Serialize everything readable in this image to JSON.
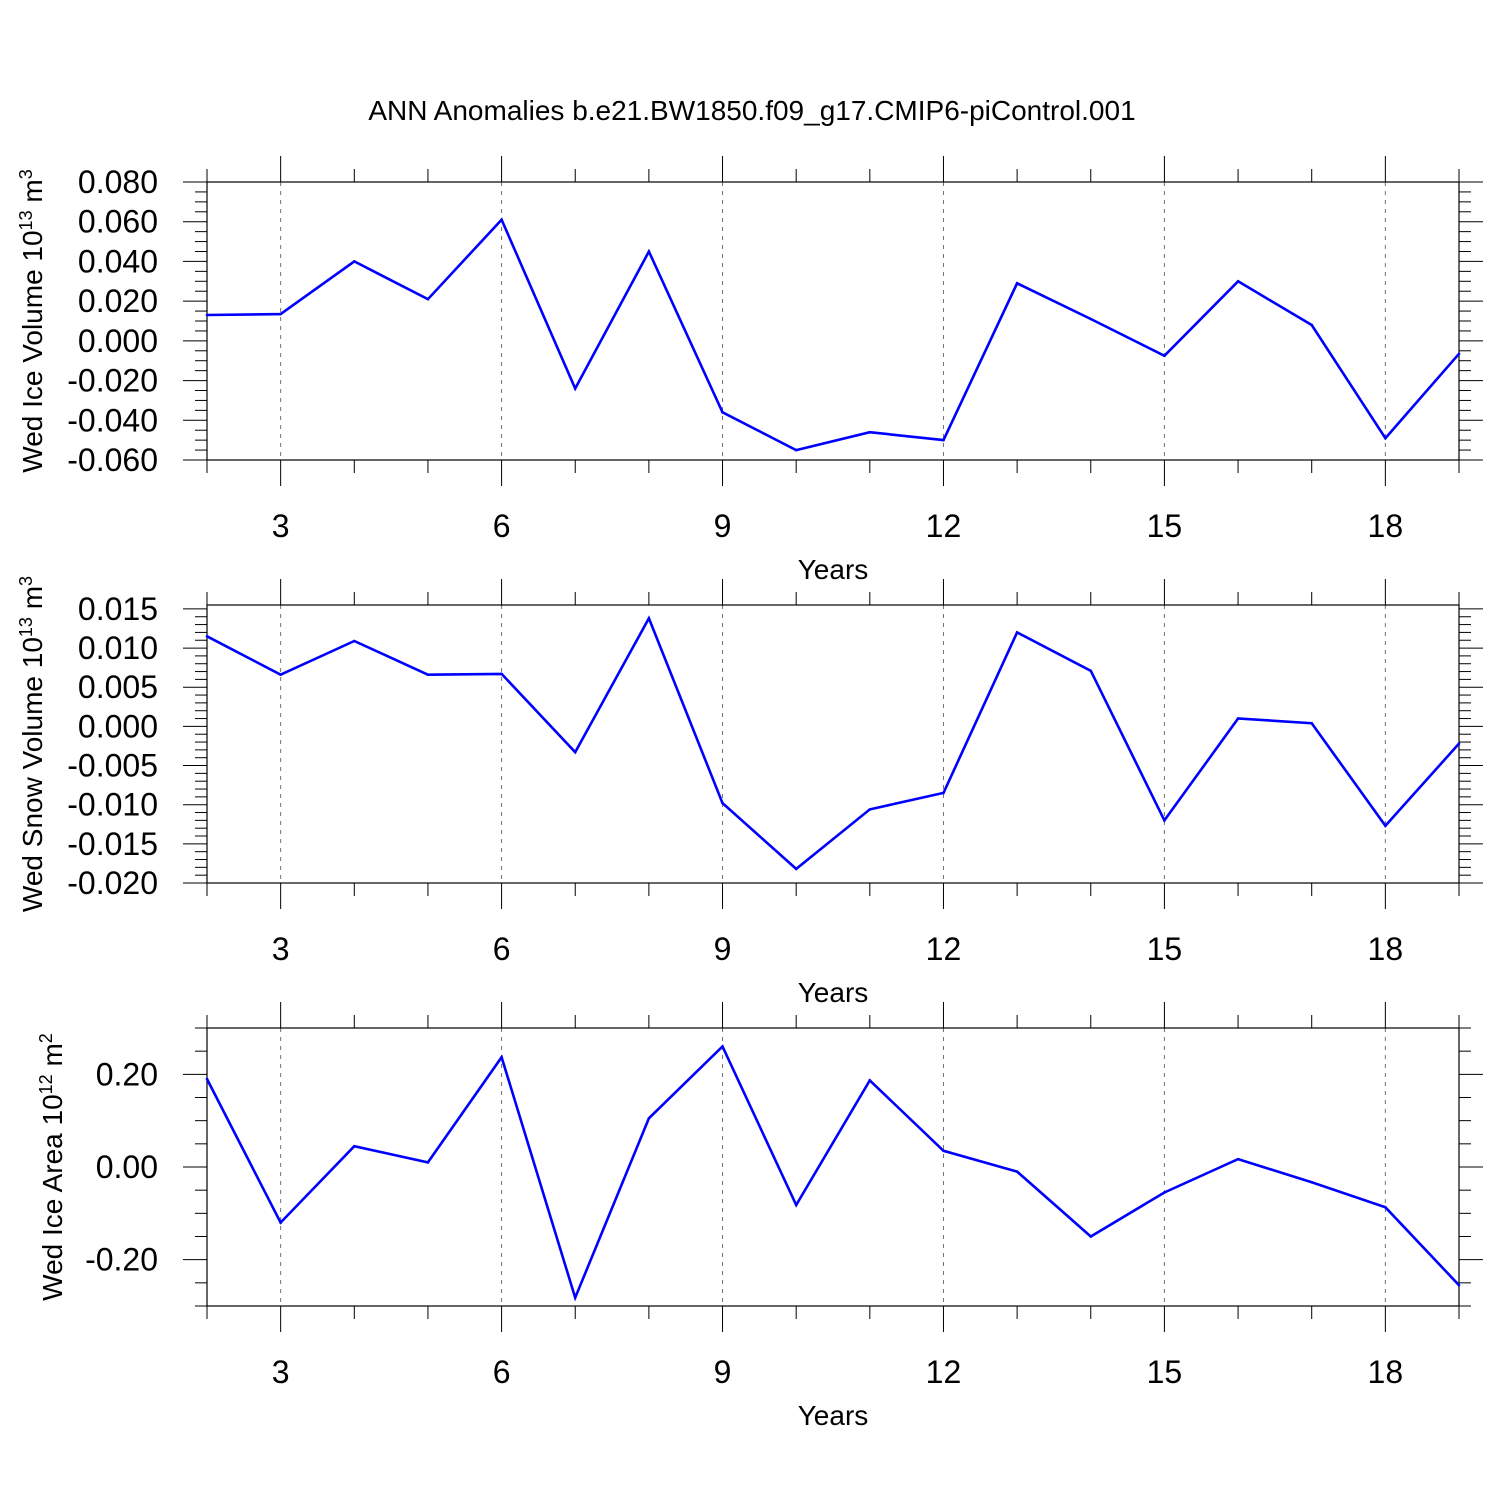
{
  "title": "ANN Anomalies b.e21.BW1850.f09_g17.CMIP6-piControl.001",
  "line_color": "#0000ff",
  "chart_data": [
    {
      "type": "line",
      "ylabel": "Wed Ice Volume 10",
      "ylabel_exp": "13",
      "ylabel_unit": "m",
      "ylabel_unit_exp": "3",
      "xlabel": "Years",
      "xlim": [
        2,
        19
      ],
      "ylim": [
        -0.06,
        0.08
      ],
      "xticks": [
        3,
        6,
        9,
        12,
        15,
        18
      ],
      "xtick_labels": [
        "3",
        "6",
        "9",
        "12",
        "15",
        "18"
      ],
      "yticks": [
        -0.06,
        -0.04,
        -0.02,
        0.0,
        0.02,
        0.04,
        0.06,
        0.08
      ],
      "ytick_labels": [
        "-0.060",
        "-0.040",
        "-0.020",
        "0.000",
        "0.020",
        "0.040",
        "0.060",
        "0.080"
      ],
      "yminor_step": 0.005,
      "grid": "vertical dashed at major x ticks",
      "x": [
        2,
        3,
        4,
        5,
        6,
        7,
        8,
        9,
        10,
        11,
        12,
        13,
        14,
        15,
        16,
        17,
        18,
        19
      ],
      "values": [
        0.013,
        0.0135,
        0.04,
        0.021,
        0.061,
        -0.024,
        0.045,
        -0.036,
        -0.055,
        -0.046,
        -0.05,
        0.029,
        0.011,
        -0.0075,
        0.03,
        0.008,
        -0.049,
        -0.0065
      ]
    },
    {
      "type": "line",
      "ylabel": "Wed Snow Volume 10",
      "ylabel_exp": "13",
      "ylabel_unit": "m",
      "ylabel_unit_exp": "3",
      "xlabel": "Years",
      "xlim": [
        2,
        19
      ],
      "ylim": [
        -0.02,
        0.0155
      ],
      "xticks": [
        3,
        6,
        9,
        12,
        15,
        18
      ],
      "xtick_labels": [
        "3",
        "6",
        "9",
        "12",
        "15",
        "18"
      ],
      "yticks": [
        -0.02,
        -0.015,
        -0.01,
        -0.005,
        0.0,
        0.005,
        0.01,
        0.015
      ],
      "ytick_labels": [
        "-0.020",
        "-0.015",
        "-0.010",
        "-0.005",
        "0.000",
        "0.005",
        "0.010",
        "0.015"
      ],
      "yminor_step": 0.001,
      "grid": "vertical dashed at major x ticks",
      "x": [
        2,
        3,
        4,
        5,
        6,
        7,
        8,
        9,
        10,
        11,
        12,
        13,
        14,
        15,
        16,
        17,
        18,
        19
      ],
      "values": [
        0.0115,
        0.0066,
        0.0109,
        0.0066,
        0.0067,
        -0.0033,
        0.0138,
        -0.0098,
        -0.0182,
        -0.0106,
        -0.0085,
        0.012,
        0.0071,
        -0.012,
        0.001,
        0.0004,
        -0.0127,
        -0.0022
      ]
    },
    {
      "type": "line",
      "ylabel": "Wed Ice Area 10",
      "ylabel_exp": "12",
      "ylabel_unit": "m",
      "ylabel_unit_exp": "2",
      "xlabel": "Years",
      "xlim": [
        2,
        19
      ],
      "ylim": [
        -0.3,
        0.3
      ],
      "xticks": [
        3,
        6,
        9,
        12,
        15,
        18
      ],
      "xtick_labels": [
        "3",
        "6",
        "9",
        "12",
        "15",
        "18"
      ],
      "yticks": [
        -0.2,
        0.0,
        0.2
      ],
      "ytick_labels": [
        "-0.20",
        "0.00",
        "0.20"
      ],
      "yminor_step": 0.05,
      "grid": "vertical dashed at major x ticks",
      "x": [
        2,
        3,
        4,
        5,
        6,
        7,
        8,
        9,
        10,
        11,
        12,
        13,
        14,
        15,
        16,
        17,
        18,
        19
      ],
      "values": [
        0.19,
        -0.12,
        0.045,
        0.01,
        0.237,
        -0.282,
        0.105,
        0.26,
        -0.082,
        0.187,
        0.035,
        -0.01,
        -0.15,
        -0.055,
        0.017,
        -0.033,
        -0.087,
        -0.255
      ]
    }
  ]
}
